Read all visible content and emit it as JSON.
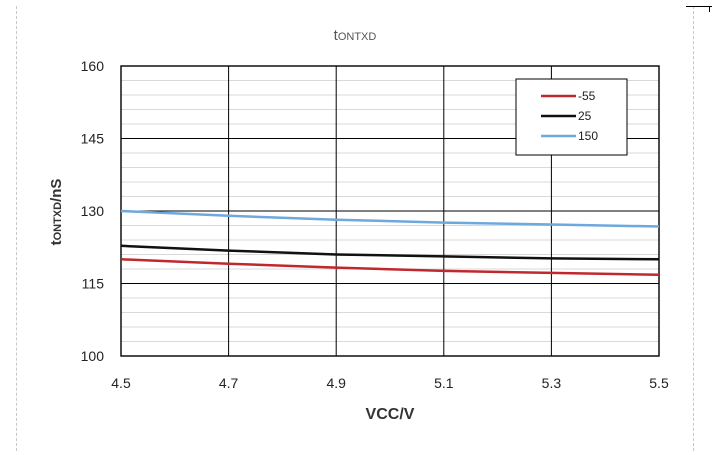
{
  "chart_data": {
    "type": "line",
    "title": "t",
    "title_sub": "ONTXD",
    "xlabel": "VCC/V",
    "ylabel": "t",
    "ylabel_sub": "ONTXD",
    "ylabel_unit": "/nS",
    "xlim": [
      4.5,
      5.5
    ],
    "ylim": [
      100,
      160
    ],
    "x_ticks": [
      4.5,
      4.7,
      4.9,
      5.1,
      5.3,
      5.5
    ],
    "y_ticks": [
      100,
      115,
      130,
      145,
      160
    ],
    "grid": true,
    "legend_position": "top-right",
    "series": [
      {
        "name": "-55",
        "color": "#c0282d",
        "x": [
          4.5,
          4.7,
          4.9,
          5.1,
          5.3,
          5.5
        ],
        "y": [
          120.0,
          119.1,
          118.3,
          117.6,
          117.2,
          116.8
        ]
      },
      {
        "name": "25",
        "color": "#111111",
        "x": [
          4.5,
          4.7,
          4.9,
          5.1,
          5.3,
          5.5
        ],
        "y": [
          122.8,
          121.8,
          121.0,
          120.6,
          120.2,
          120.0
        ]
      },
      {
        "name": "150",
        "color": "#6fa8dc",
        "x": [
          4.5,
          4.7,
          4.9,
          5.1,
          5.3,
          5.5
        ],
        "y": [
          130.0,
          129.0,
          128.2,
          127.6,
          127.2,
          126.8
        ]
      }
    ]
  }
}
